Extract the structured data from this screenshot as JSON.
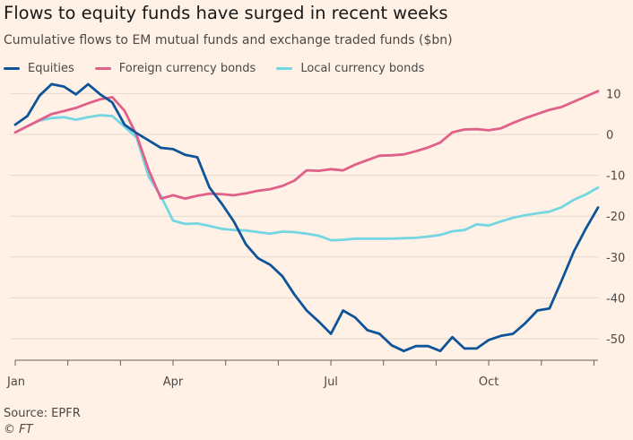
{
  "header": {
    "title": "Flows to equity funds have surged in recent weeks",
    "subtitle": "Cumulative flows to EM mutual funds and exchange traded funds ($bn)"
  },
  "footer": {
    "source": "Source: EPFR",
    "credit": "© FT"
  },
  "chart_data": {
    "type": "line",
    "title": "Flows to equity funds have surged in recent weeks",
    "subtitle": "Cumulative flows to EM mutual funds and exchange traded funds ($bn)",
    "xlabel": "",
    "ylabel": "",
    "x_tick_labels": [
      "Jan",
      "Apr",
      "Jul",
      "Oct"
    ],
    "y_ticks": [
      10,
      0,
      -10,
      -20,
      -30,
      -40,
      -50
    ],
    "y_tick_labels": [
      "10",
      "0",
      "-10",
      "-20",
      "-30",
      "-40",
      "-50"
    ],
    "ylim": [
      -55,
      12
    ],
    "y_axis_side": "right",
    "grid": true,
    "legend_position": "top-left",
    "x_unit": "week",
    "xlim": [
      0,
      48
    ],
    "x_tick_positions": [
      0,
      13,
      26,
      39
    ],
    "series": [
      {
        "name": "Equities",
        "color": "#0f5499",
        "x": [
          0,
          1,
          2,
          3,
          4,
          5,
          6,
          7,
          8,
          9,
          10,
          11,
          12,
          13,
          14,
          15,
          16,
          17,
          18,
          19,
          20,
          21,
          22,
          23,
          24,
          25,
          26,
          27,
          28,
          29,
          30,
          31,
          32,
          33,
          34,
          35,
          36,
          37,
          38,
          39,
          40,
          41,
          42,
          43,
          44,
          45,
          46,
          47,
          48
        ],
        "values": [
          2.4,
          4.5,
          9.5,
          12.3,
          11.7,
          9.8,
          12.3,
          9.8,
          7.8,
          2.4,
          0.3,
          -1.5,
          -3.3,
          -3.6,
          -5.0,
          -5.6,
          -13.0,
          -16.9,
          -21.3,
          -26.9,
          -30.3,
          -31.9,
          -34.7,
          -39.2,
          -43.1,
          -45.8,
          -48.8,
          -43.1,
          -44.8,
          -47.9,
          -48.8,
          -51.6,
          -53.0,
          -51.8,
          -51.8,
          -53.0,
          -49.6,
          -52.4,
          -52.4,
          -50.3,
          -49.3,
          -48.8,
          -46.2,
          -43.1,
          -42.6,
          -35.8,
          -28.7,
          -23.0,
          -17.9
        ]
      },
      {
        "name": "Foreign currency bonds",
        "color": "#e0608a",
        "x": [
          0,
          1,
          2,
          3,
          4,
          5,
          6,
          7,
          8,
          9,
          10,
          11,
          12,
          13,
          14,
          15,
          16,
          17,
          18,
          19,
          20,
          21,
          22,
          23,
          24,
          25,
          26,
          27,
          28,
          29,
          30,
          31,
          32,
          33,
          34,
          35,
          36,
          37,
          38,
          39,
          40,
          41,
          42,
          43,
          44,
          45,
          46,
          47,
          48
        ],
        "values": [
          0.5,
          2.0,
          3.5,
          5.0,
          5.7,
          6.5,
          7.6,
          8.6,
          9.1,
          5.8,
          -0.2,
          -8.8,
          -15.7,
          -14.9,
          -15.7,
          -15.0,
          -14.5,
          -14.6,
          -14.9,
          -14.4,
          -13.8,
          -13.4,
          -12.6,
          -11.3,
          -8.8,
          -8.9,
          -8.5,
          -8.8,
          -7.4,
          -6.3,
          -5.2,
          -5.1,
          -4.9,
          -4.1,
          -3.2,
          -2.0,
          0.5,
          1.2,
          1.3,
          1.0,
          1.5,
          2.8,
          4.0,
          5.0,
          6.0,
          6.7,
          8.0,
          9.3,
          10.6
        ]
      },
      {
        "name": "Local currency bonds",
        "color": "#75d6e3",
        "x": [
          0,
          1,
          2,
          3,
          4,
          5,
          6,
          7,
          8,
          9,
          10,
          11,
          12,
          13,
          14,
          15,
          16,
          17,
          18,
          19,
          20,
          21,
          22,
          23,
          24,
          25,
          26,
          27,
          28,
          29,
          30,
          31,
          32,
          33,
          34,
          35,
          36,
          37,
          38,
          39,
          40,
          41,
          42,
          43,
          44,
          45,
          46,
          47,
          48
        ],
        "values": [
          0.5,
          2.0,
          3.4,
          4.0,
          4.2,
          3.6,
          4.2,
          4.7,
          4.5,
          1.9,
          -0.8,
          -10.4,
          -15.1,
          -21.1,
          -21.9,
          -21.8,
          -22.4,
          -23.1,
          -23.4,
          -23.5,
          -23.9,
          -24.3,
          -23.8,
          -23.9,
          -24.3,
          -24.8,
          -25.9,
          -25.8,
          -25.5,
          -25.5,
          -25.5,
          -25.5,
          -25.4,
          -25.3,
          -25.0,
          -24.6,
          -23.7,
          -23.4,
          -22.0,
          -22.3,
          -21.3,
          -20.4,
          -19.8,
          -19.3,
          -18.9,
          -17.8,
          -16.0,
          -14.7,
          -13.0
        ]
      }
    ]
  }
}
